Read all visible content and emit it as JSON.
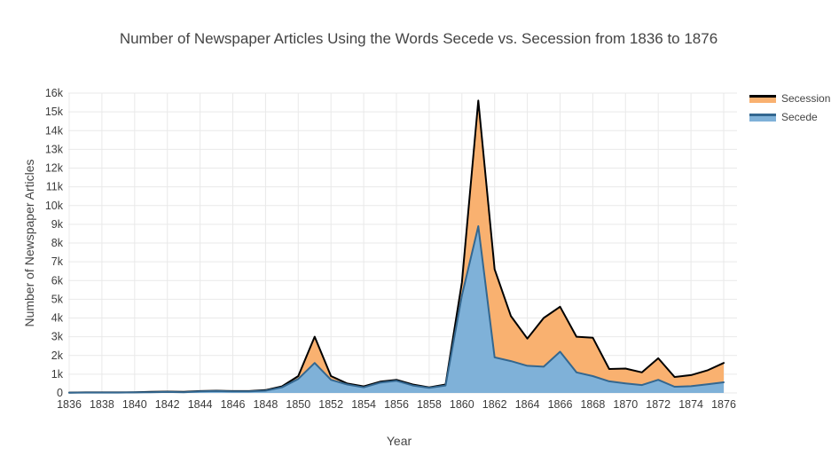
{
  "title": "Number of Newspaper Articles Using the Words Secede vs. Secession from 1836 to 1876",
  "legend": {
    "items": [
      {
        "label": "Secession"
      },
      {
        "label": "Secede"
      }
    ]
  },
  "chart_data": {
    "type": "area",
    "title": "Number of Newspaper Articles Using the Words Secede vs. Secession from 1836 to 1876",
    "xlabel": "Year",
    "ylabel": "Number of Newspaper Articles",
    "grid": true,
    "legend_position": "top-right",
    "grid_color": "#e9e9e9",
    "text_color": "#444444",
    "tick_text_color": "#3b3b3b",
    "xlim": [
      1836,
      1876
    ],
    "ylim": [
      0,
      16000
    ],
    "xticks": [
      1836,
      1838,
      1840,
      1842,
      1844,
      1846,
      1848,
      1850,
      1852,
      1854,
      1856,
      1858,
      1860,
      1862,
      1864,
      1866,
      1868,
      1870,
      1872,
      1874,
      1876
    ],
    "ytick_values": [
      0,
      1000,
      2000,
      3000,
      4000,
      5000,
      6000,
      7000,
      8000,
      9000,
      10000,
      11000,
      12000,
      13000,
      14000,
      15000,
      16000
    ],
    "yticks": [
      "0",
      "1k",
      "2k",
      "3k",
      "4k",
      "5k",
      "6k",
      "7k",
      "8k",
      "9k",
      "10k",
      "11k",
      "12k",
      "13k",
      "14k",
      "15k",
      "16k"
    ],
    "x": [
      1836,
      1837,
      1838,
      1839,
      1840,
      1841,
      1842,
      1843,
      1844,
      1845,
      1846,
      1847,
      1848,
      1849,
      1850,
      1851,
      1852,
      1853,
      1854,
      1855,
      1856,
      1857,
      1858,
      1859,
      1860,
      1861,
      1862,
      1863,
      1864,
      1865,
      1866,
      1867,
      1868,
      1869,
      1870,
      1871,
      1872,
      1873,
      1874,
      1875,
      1876
    ],
    "series": [
      {
        "name": "Secession",
        "line_color": "#000000",
        "fill_color": "#f9b170",
        "values": [
          20,
          30,
          30,
          30,
          40,
          60,
          70,
          60,
          100,
          120,
          100,
          100,
          150,
          350,
          900,
          3000,
          900,
          500,
          350,
          600,
          700,
          450,
          300,
          450,
          5900,
          15600,
          6600,
          4100,
          2900,
          4000,
          4600,
          3000,
          2950,
          1280,
          1300,
          1100,
          1850,
          850,
          950,
          1200,
          1600
        ]
      },
      {
        "name": "Secede",
        "line_color": "#336790",
        "fill_color": "#7fb1d8",
        "values": [
          10,
          20,
          20,
          20,
          30,
          40,
          50,
          40,
          80,
          100,
          80,
          80,
          120,
          300,
          750,
          1600,
          700,
          450,
          300,
          550,
          650,
          400,
          270,
          400,
          5200,
          8900,
          1900,
          1700,
          1450,
          1400,
          2200,
          1100,
          900,
          620,
          510,
          420,
          700,
          330,
          360,
          460,
          570
        ]
      }
    ]
  }
}
